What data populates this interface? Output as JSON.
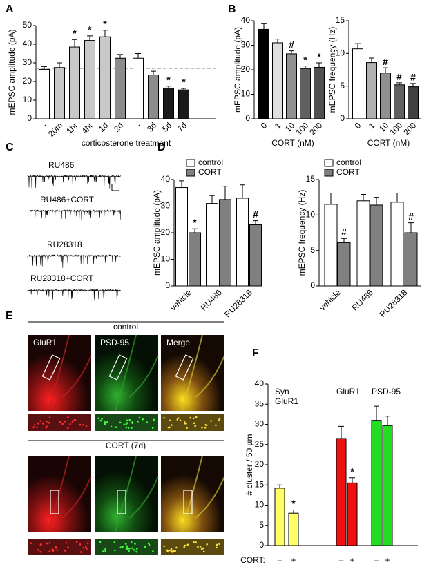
{
  "panel_labels": [
    "A",
    "B",
    "C",
    "D",
    "E",
    "F"
  ],
  "trace_labels": [
    "RU486",
    "RU486+CORT",
    "RU28318",
    "RU28318+CORT"
  ],
  "image_panel": {
    "conditions": [
      "control",
      "CORT (7d)"
    ],
    "channels": [
      "GluR1",
      "PSD-95",
      "Merge"
    ]
  },
  "chart_data": [
    {
      "type": "bar",
      "ylabel": "mEPSC amplitude (pA)",
      "xlabel": "corticosterone treatment",
      "categories": [
        "-",
        "20m",
        "1hr",
        "4hr",
        "1d",
        "2d",
        "-",
        "3d",
        "5d",
        "7d"
      ],
      "values": [
        26.5,
        27.5,
        38.5,
        42,
        44,
        32.5,
        32.5,
        23.5,
        16.5,
        15.5
      ],
      "errors": [
        1.5,
        2.5,
        4,
        2.5,
        3.5,
        2,
        2.5,
        2,
        1,
        0.8
      ],
      "annotations": [
        null,
        null,
        "*",
        "*",
        "*",
        null,
        null,
        null,
        "*",
        "*"
      ],
      "colors": [
        "#ffffff",
        "#c8c8c8",
        "#c8c8c8",
        "#c8c8c8",
        "#c8c8c8",
        "#8c8c8c",
        "#ffffff",
        "#8c8c8c",
        "#1a1a1a",
        "#1a1a1a"
      ],
      "reference_line": 27,
      "ylim": [
        0,
        50
      ],
      "yticks": [
        0,
        10,
        20,
        30,
        40,
        50
      ]
    },
    {
      "type": "bar",
      "ylabel": "mEPSC amplitude (pA)",
      "xlabel": "CORT (nM)",
      "categories": [
        "0",
        "1",
        "10",
        "100",
        "200"
      ],
      "values": [
        36.5,
        31,
        26.5,
        20.5,
        21
      ],
      "errors": [
        2.3,
        1.5,
        1.2,
        1,
        1.8
      ],
      "annotations": [
        null,
        null,
        "#",
        "*",
        "*"
      ],
      "colors": [
        "#000000",
        "#e0e0e0",
        "#909090",
        "#606060",
        "#505050"
      ],
      "ylim": [
        0,
        40
      ],
      "yticks": [
        0,
        10,
        20,
        30,
        40
      ]
    },
    {
      "type": "bar",
      "ylabel": "mEPSC frequency (Hz)",
      "xlabel": "CORT (nM)",
      "categories": [
        "0",
        "1",
        "10",
        "100",
        "200"
      ],
      "values": [
        10.7,
        8.6,
        7.0,
        5.2,
        4.9
      ],
      "errors": [
        0.8,
        0.7,
        0.8,
        0.3,
        0.5
      ],
      "annotations": [
        null,
        null,
        "#",
        "#",
        "#"
      ],
      "colors": [
        "#ffffff",
        "#b0b0b0",
        "#909090",
        "#606060",
        "#404040"
      ],
      "ylim": [
        0,
        15
      ],
      "yticks": [
        0,
        5,
        10,
        15
      ]
    },
    {
      "type": "grouped_bar",
      "ylabel": "mEPSC amplitude (pA)",
      "categories": [
        "vehicle",
        "RU486",
        "RU28318"
      ],
      "series": [
        {
          "name": "control",
          "color": "#ffffff",
          "values": [
            37,
            31,
            33
          ],
          "errors": [
            2.5,
            3,
            5
          ],
          "annotations": [
            null,
            null,
            null
          ]
        },
        {
          "name": "CORT",
          "color": "#808080",
          "values": [
            20,
            32.5,
            23
          ],
          "errors": [
            1.5,
            5,
            1.5
          ],
          "annotations": [
            "*",
            null,
            "#"
          ]
        }
      ],
      "ylim": [
        0,
        40
      ],
      "yticks": [
        0,
        10,
        20,
        30,
        40
      ]
    },
    {
      "type": "grouped_bar",
      "ylabel": "mEPSC frequency (Hz)",
      "categories": [
        "vehicle",
        "RU486",
        "RU28318"
      ],
      "series": [
        {
          "name": "control",
          "color": "#ffffff",
          "values": [
            11.5,
            12,
            11.8
          ],
          "errors": [
            1.6,
            0.9,
            1.3
          ],
          "annotations": [
            null,
            null,
            null
          ]
        },
        {
          "name": "CORT",
          "color": "#808080",
          "values": [
            6.1,
            11.4,
            7.5
          ],
          "errors": [
            0.6,
            1.1,
            1.4
          ],
          "annotations": [
            "#",
            null,
            "#"
          ]
        }
      ],
      "ylim": [
        0,
        15
      ],
      "yticks": [
        0,
        5,
        10,
        15
      ]
    },
    {
      "type": "bar",
      "ylabel": "# cluster / 50 µm",
      "x_prefix": "CORT:",
      "group_labels": [
        [
          "Syn",
          "GluR1"
        ],
        [
          "GluR1"
        ],
        [
          "PSD-95"
        ]
      ],
      "categories": [
        "–",
        "+",
        "–",
        "+",
        "–",
        "+"
      ],
      "values": [
        14.2,
        8,
        26.5,
        15.5,
        31,
        29.7
      ],
      "errors": [
        0.8,
        0.8,
        3,
        1.3,
        3.5,
        2.3
      ],
      "annotations": [
        null,
        "*",
        null,
        "*",
        null,
        null
      ],
      "colors": [
        "#ffff66",
        "#ffff66",
        "#ee1111",
        "#ee1111",
        "#22dd22",
        "#22dd22"
      ],
      "ylim": [
        0,
        40
      ],
      "yticks": [
        0,
        5,
        10,
        15,
        20,
        25,
        30,
        35,
        40
      ]
    }
  ]
}
